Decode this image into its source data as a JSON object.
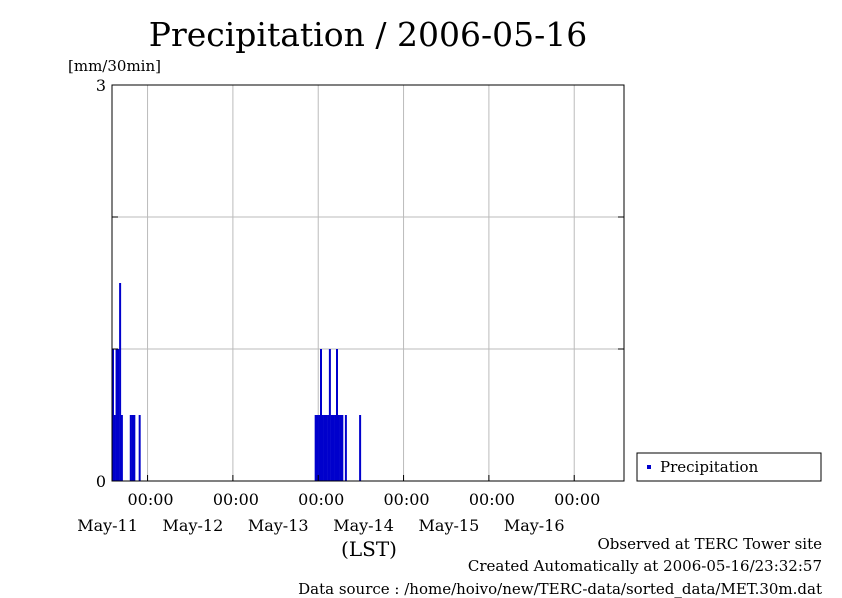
{
  "title": "Precipitation / 2006-05-16",
  "ylabel": "[mm/30min]",
  "xlabel": "(LST)",
  "legend": {
    "label": "Precipitation",
    "color": "#0000cc"
  },
  "footer": {
    "line1": "Observed at TERC Tower site",
    "line2": "Created Automatically at 2006-05-16/23:32:57",
    "line3": "Data source : /home/hoivo/new/TERC-data/sorted_data/MET.30m.dat"
  },
  "chart_data": {
    "type": "bar",
    "title": "Precipitation / 2006-05-16",
    "ylabel": "[mm/30min]",
    "xlabel": "(LST)",
    "ylim": [
      0,
      3
    ],
    "y_ticks": [
      "0",
      "3"
    ],
    "y_gridlines": [
      0,
      1,
      2,
      3
    ],
    "x_range": [
      "2006-05-10 14:00",
      "2006-05-16 14:00"
    ],
    "x_ticks": [
      {
        "time": "2006-05-11 00:00",
        "label": "00:00",
        "date": "May-11"
      },
      {
        "time": "2006-05-12 00:00",
        "label": "00:00",
        "date": "May-12"
      },
      {
        "time": "2006-05-13 00:00",
        "label": "00:00",
        "date": "May-13"
      },
      {
        "time": "2006-05-14 00:00",
        "label": "00:00",
        "date": "May-14"
      },
      {
        "time": "2006-05-15 00:00",
        "label": "00:00",
        "date": "May-15"
      },
      {
        "time": "2006-05-16 00:00",
        "label": "00:00",
        "date": "May-16"
      }
    ],
    "grid": true,
    "legend_position": "right",
    "series": [
      {
        "name": "Precipitation",
        "color": "#0000cc",
        "points": [
          {
            "x": "2006-05-10 14:00",
            "y": 1.0
          },
          {
            "x": "2006-05-10 14:30",
            "y": 0.5
          },
          {
            "x": "2006-05-10 15:00",
            "y": 1.0
          },
          {
            "x": "2006-05-10 15:30",
            "y": 1.0
          },
          {
            "x": "2006-05-10 16:00",
            "y": 1.5
          },
          {
            "x": "2006-05-10 16:30",
            "y": 0.5
          },
          {
            "x": "2006-05-10 19:00",
            "y": 0.5
          },
          {
            "x": "2006-05-10 19:30",
            "y": 0.5
          },
          {
            "x": "2006-05-10 20:00",
            "y": 0.5
          },
          {
            "x": "2006-05-10 21:30",
            "y": 0.5
          },
          {
            "x": "2006-05-12 23:00",
            "y": 0.5
          },
          {
            "x": "2006-05-12 23:30",
            "y": 0.5
          },
          {
            "x": "2006-05-13 00:00",
            "y": 0.5
          },
          {
            "x": "2006-05-13 00:30",
            "y": 1.0
          },
          {
            "x": "2006-05-13 01:00",
            "y": 0.5
          },
          {
            "x": "2006-05-13 01:30",
            "y": 0.5
          },
          {
            "x": "2006-05-13 02:00",
            "y": 0.5
          },
          {
            "x": "2006-05-13 02:30",
            "y": 0.5
          },
          {
            "x": "2006-05-13 03:00",
            "y": 1.0
          },
          {
            "x": "2006-05-13 03:30",
            "y": 0.5
          },
          {
            "x": "2006-05-13 04:00",
            "y": 0.5
          },
          {
            "x": "2006-05-13 04:30",
            "y": 0.5
          },
          {
            "x": "2006-05-13 05:00",
            "y": 1.0
          },
          {
            "x": "2006-05-13 05:30",
            "y": 0.5
          },
          {
            "x": "2006-05-13 06:00",
            "y": 0.5
          },
          {
            "x": "2006-05-13 06:30",
            "y": 0.5
          },
          {
            "x": "2006-05-13 07:30",
            "y": 0.5
          },
          {
            "x": "2006-05-13 11:30",
            "y": 0.5
          }
        ]
      }
    ]
  }
}
